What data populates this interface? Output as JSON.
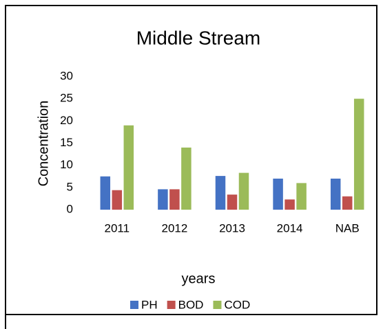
{
  "chart_data": {
    "type": "bar",
    "title": "Middle Stream",
    "categories": [
      "2011",
      "2012",
      "2013",
      "2014",
      "NAB"
    ],
    "series": [
      {
        "name": "PH",
        "color": "#4472c4",
        "values": [
          7.5,
          4.6,
          7.6,
          7.0,
          7.0
        ]
      },
      {
        "name": "BOD",
        "color": "#c0504d",
        "values": [
          4.4,
          4.6,
          3.4,
          2.3,
          3.0
        ]
      },
      {
        "name": "COD",
        "color": "#9bbb59",
        "values": [
          19,
          14,
          8.3,
          6.0,
          25
        ]
      }
    ],
    "ylim": [
      0,
      30
    ],
    "yticks": [
      0,
      5,
      10,
      15,
      20,
      25,
      30
    ],
    "xlabel": "years",
    "ylabel": "Concentration",
    "grid": false,
    "legend": "bottom"
  }
}
